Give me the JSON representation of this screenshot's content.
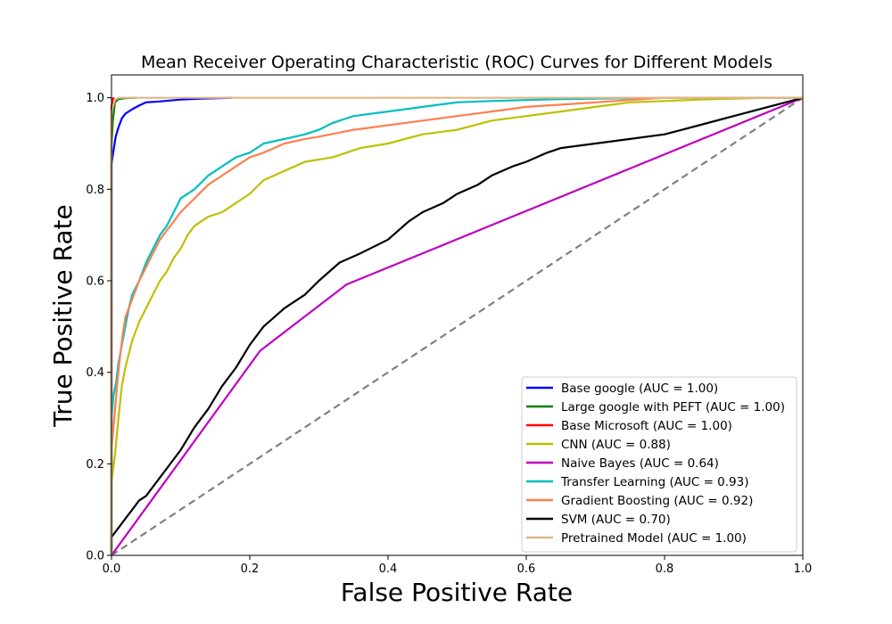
{
  "chart_data": {
    "type": "line",
    "title": "Mean Receiver Operating Characteristic (ROC) Curves for Different Models",
    "xlabel": "False Positive Rate",
    "ylabel": "True Positive Rate",
    "xlim": [
      0,
      1
    ],
    "ylim": [
      0,
      1.05
    ],
    "xticks": [
      "0.0",
      "0.2",
      "0.4",
      "0.6",
      "0.8",
      "1.0"
    ],
    "yticks": [
      "0.0",
      "0.2",
      "0.4",
      "0.6",
      "0.8",
      "1.0"
    ],
    "grid": false,
    "legend_position": "lower-right",
    "chance_line": {
      "x": [
        0,
        1
      ],
      "y": [
        0,
        1
      ],
      "color": "#808080",
      "style": "dashed"
    },
    "series": [
      {
        "name": "Base google (AUC = 1.00)",
        "color": "#0000ff",
        "x": [
          0,
          0,
          0.003,
          0.006,
          0.01,
          0.015,
          0.02,
          0.03,
          0.04,
          0.05,
          0.07,
          0.1,
          0.13,
          0.175
        ],
        "y": [
          0,
          0.855,
          0.885,
          0.915,
          0.935,
          0.955,
          0.965,
          0.975,
          0.983,
          0.99,
          0.992,
          0.996,
          0.998,
          1.0
        ]
      },
      {
        "name": "Large google with PEFT (AUC = 1.00)",
        "color": "#008000",
        "x": [
          0,
          0,
          0.002,
          0.005,
          0.01,
          0.02,
          0.035
        ],
        "y": [
          0,
          0.89,
          0.95,
          0.99,
          0.997,
          0.999,
          1.0
        ]
      },
      {
        "name": "Base Microsoft (AUC = 1.00)",
        "color": "#ff0000",
        "x": [
          0,
          0,
          0.002,
          0.004
        ],
        "y": [
          0,
          0.98,
          0.998,
          1.0
        ]
      },
      {
        "name": "CNN (AUC = 0.88)",
        "color": "#bfbf00",
        "x": [
          0,
          0,
          0.005,
          0.01,
          0.015,
          0.02,
          0.03,
          0.04,
          0.05,
          0.06,
          0.07,
          0.08,
          0.09,
          0.1,
          0.11,
          0.12,
          0.14,
          0.16,
          0.18,
          0.2,
          0.22,
          0.25,
          0.28,
          0.32,
          0.36,
          0.4,
          0.45,
          0.5,
          0.55,
          0.6,
          0.65,
          0.7,
          0.75,
          0.8,
          0.85,
          0.9,
          0.95,
          1.0
        ],
        "y": [
          0,
          0.16,
          0.22,
          0.3,
          0.37,
          0.41,
          0.47,
          0.51,
          0.54,
          0.57,
          0.6,
          0.62,
          0.65,
          0.67,
          0.7,
          0.72,
          0.74,
          0.75,
          0.77,
          0.79,
          0.82,
          0.84,
          0.86,
          0.87,
          0.89,
          0.9,
          0.92,
          0.93,
          0.95,
          0.96,
          0.97,
          0.98,
          0.99,
          0.993,
          0.996,
          0.998,
          1.0,
          1.0
        ]
      },
      {
        "name": "Naive Bayes (AUC = 0.64)",
        "color": "#bf00bf",
        "x": [
          0,
          0.215,
          0.34,
          1.0
        ],
        "y": [
          0,
          0.447,
          0.592,
          1.0
        ]
      },
      {
        "name": "Transfer Learning (AUC = 0.93)",
        "color": "#00bfbf",
        "x": [
          0,
          0,
          0.003,
          0.007,
          0.01,
          0.015,
          0.02,
          0.025,
          0.03,
          0.04,
          0.05,
          0.06,
          0.07,
          0.08,
          0.09,
          0.1,
          0.12,
          0.14,
          0.16,
          0.18,
          0.2,
          0.22,
          0.25,
          0.28,
          0.3,
          0.32,
          0.35,
          0.4,
          0.45,
          0.5,
          0.55,
          0.6,
          0.65,
          0.7,
          0.8,
          0.9,
          1.0
        ],
        "y": [
          0,
          0.3,
          0.35,
          0.38,
          0.42,
          0.46,
          0.5,
          0.54,
          0.57,
          0.6,
          0.64,
          0.67,
          0.7,
          0.72,
          0.75,
          0.78,
          0.8,
          0.83,
          0.85,
          0.87,
          0.88,
          0.9,
          0.91,
          0.92,
          0.93,
          0.945,
          0.96,
          0.97,
          0.98,
          0.99,
          0.993,
          0.995,
          0.997,
          0.998,
          1.0,
          1.0,
          1.0
        ]
      },
      {
        "name": "Gradient Boosting (AUC = 0.92)",
        "color": "#ff7f50",
        "x": [
          0,
          0,
          0.004,
          0.008,
          0.012,
          0.016,
          0.02,
          0.03,
          0.04,
          0.05,
          0.06,
          0.07,
          0.08,
          0.09,
          0.1,
          0.12,
          0.14,
          0.16,
          0.18,
          0.2,
          0.22,
          0.25,
          0.28,
          0.3,
          0.35,
          0.4,
          0.45,
          0.5,
          0.55,
          0.6,
          0.65,
          0.7,
          0.75,
          0.8,
          0.9,
          1.0
        ],
        "y": [
          0,
          0.23,
          0.3,
          0.37,
          0.43,
          0.48,
          0.52,
          0.56,
          0.6,
          0.63,
          0.66,
          0.69,
          0.71,
          0.73,
          0.75,
          0.78,
          0.81,
          0.83,
          0.85,
          0.87,
          0.88,
          0.9,
          0.91,
          0.915,
          0.93,
          0.94,
          0.95,
          0.96,
          0.97,
          0.98,
          0.985,
          0.99,
          0.995,
          1.0,
          1.0,
          1.0
        ]
      },
      {
        "name": "SVM (AUC = 0.70)",
        "color": "#000000",
        "x": [
          0,
          0,
          0.01,
          0.02,
          0.03,
          0.04,
          0.05,
          0.06,
          0.07,
          0.08,
          0.1,
          0.12,
          0.14,
          0.16,
          0.18,
          0.2,
          0.22,
          0.25,
          0.28,
          0.3,
          0.33,
          0.36,
          0.4,
          0.43,
          0.45,
          0.48,
          0.5,
          0.53,
          0.55,
          0.58,
          0.6,
          0.63,
          0.65,
          0.7,
          0.75,
          0.8,
          0.85,
          0.9,
          0.95,
          1.0
        ],
        "y": [
          0,
          0.04,
          0.06,
          0.08,
          0.1,
          0.12,
          0.13,
          0.15,
          0.17,
          0.19,
          0.23,
          0.28,
          0.32,
          0.37,
          0.41,
          0.46,
          0.5,
          0.54,
          0.57,
          0.6,
          0.64,
          0.66,
          0.69,
          0.73,
          0.75,
          0.77,
          0.79,
          0.81,
          0.83,
          0.85,
          0.86,
          0.88,
          0.89,
          0.9,
          0.91,
          0.92,
          0.94,
          0.96,
          0.98,
          1.0
        ]
      },
      {
        "name": "Pretrained Model (AUC = 1.00)",
        "color": "#deb887",
        "x": [
          0,
          0,
          0.005,
          0.01,
          1.0
        ],
        "y": [
          0,
          0.97,
          0.995,
          1.0,
          1.0
        ]
      }
    ]
  }
}
